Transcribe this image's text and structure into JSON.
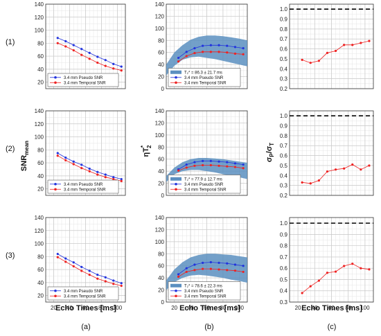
{
  "row_labels": [
    "(1)",
    "(2)",
    "(3)"
  ],
  "col_labels": [
    "(a)",
    "(b)",
    "(c)"
  ],
  "ylabels": {
    "a_base": "SNR",
    "a_sub": "mean",
    "b_base": "ηT",
    "b_sup": "*",
    "b_sub": "2",
    "c_base": "σ",
    "c_sub1": "P",
    "c_mid": "/σ",
    "c_sub2": "T"
  },
  "xlabel": "Echo Times [ms]",
  "colors": {
    "pseudo": "#2233dd",
    "temporal": "#ee2222",
    "band": "#5b8fc0",
    "grid": "#c8c8c8",
    "dashed": "#000000"
  },
  "chart_data": [
    {
      "row": "(1)",
      "col": "(a)",
      "type": "line",
      "xlim": [
        10,
        110
      ],
      "ylim": [
        10,
        140
      ],
      "xticks": [
        20,
        40,
        60,
        80,
        100
      ],
      "yticks": [
        20,
        40,
        60,
        80,
        100,
        120,
        140
      ],
      "x": [
        25,
        35,
        45,
        55,
        65,
        75,
        85,
        95,
        105
      ],
      "series": [
        {
          "name": "3.4 mm Pseudo SNR",
          "values": [
            88,
            83,
            77,
            71,
            65,
            59,
            54,
            48,
            44
          ]
        },
        {
          "name": "3.4 mm Temporal SNR",
          "values": [
            80,
            75,
            69,
            62,
            56,
            50,
            45,
            41,
            38
          ]
        }
      ]
    },
    {
      "row": "(1)",
      "col": "(b)",
      "type": "line",
      "xlim": [
        10,
        110
      ],
      "ylim": [
        0,
        140
      ],
      "xticks": [
        20,
        40,
        60,
        80,
        100
      ],
      "yticks": [
        0,
        20,
        40,
        60,
        80,
        100,
        120,
        140
      ],
      "band_label": "T₂* = 86.3 ± 21.7 ms",
      "band_x": [
        10,
        20,
        30,
        40,
        50,
        60,
        70,
        80,
        90,
        100,
        110
      ],
      "band_upper": [
        40,
        60,
        72,
        81,
        86,
        88,
        88,
        87,
        85,
        83,
        80
      ],
      "band_lower": [
        22,
        38,
        48,
        52,
        53,
        51,
        49,
        46,
        43,
        40,
        37
      ],
      "x": [
        25,
        35,
        45,
        55,
        65,
        75,
        85,
        95,
        105
      ],
      "series": [
        {
          "name": "3.4 mm Pseudo SNR",
          "values": [
            51,
            61,
            67,
            71,
            72,
            72,
            71,
            69,
            67
          ]
        },
        {
          "name": "3.4 mm Temporal SNR",
          "values": [
            45,
            54,
            59,
            61,
            61,
            61,
            60,
            58,
            57
          ]
        }
      ]
    },
    {
      "row": "(1)",
      "col": "(c)",
      "type": "line",
      "xlim": [
        10,
        110
      ],
      "ylim": [
        0.2,
        1.05
      ],
      "xticks": [
        20,
        40,
        60,
        80,
        100
      ],
      "yticks": [
        0.2,
        0.3,
        0.4,
        0.5,
        0.6,
        0.7,
        0.8,
        0.9,
        1.0
      ],
      "ytick_labels": [
        "0.2",
        "0.3",
        "0.4",
        "0.5",
        "0.6",
        "0.7",
        "0.8",
        "0.9",
        "1.0"
      ],
      "hline": 1.0,
      "x": [
        25,
        35,
        45,
        55,
        65,
        75,
        85,
        95,
        105
      ],
      "series": [
        {
          "name": "",
          "values": [
            0.49,
            0.46,
            0.48,
            0.56,
            0.58,
            0.64,
            0.64,
            0.66,
            0.68
          ]
        }
      ]
    },
    {
      "row": "(2)",
      "col": "(a)",
      "type": "line",
      "xlim": [
        10,
        110
      ],
      "ylim": [
        10,
        140
      ],
      "xticks": [
        20,
        40,
        60,
        80,
        100
      ],
      "yticks": [
        20,
        40,
        60,
        80,
        100,
        120,
        140
      ],
      "x": [
        25,
        35,
        45,
        55,
        65,
        75,
        85,
        95,
        105
      ],
      "series": [
        {
          "name": "3.4 mm Pseudo SNR",
          "values": [
            75,
            68,
            62,
            57,
            51,
            46,
            42,
            38,
            35
          ]
        },
        {
          "name": "3.4 mm Temporal SNR",
          "values": [
            71,
            64,
            58,
            52,
            47,
            42,
            38,
            35,
            32
          ]
        }
      ]
    },
    {
      "row": "(2)",
      "col": "(b)",
      "type": "line",
      "xlim": [
        10,
        110
      ],
      "ylim": [
        0,
        140
      ],
      "xticks": [
        20,
        40,
        60,
        80,
        100
      ],
      "yticks": [
        0,
        20,
        40,
        60,
        80,
        100,
        120,
        140
      ],
      "band_label": "T₂* = 77.9 ± 12.7 ms",
      "band_x": [
        10,
        20,
        30,
        40,
        50,
        60,
        70,
        80,
        90,
        100,
        110
      ],
      "band_upper": [
        32,
        46,
        55,
        60,
        62,
        62,
        61,
        60,
        58,
        56,
        54
      ],
      "band_lower": [
        22,
        35,
        40,
        42,
        42,
        40,
        38,
        35,
        32,
        30,
        27
      ],
      "x": [
        25,
        35,
        45,
        55,
        65,
        75,
        85,
        95,
        105
      ],
      "series": [
        {
          "name": "3.4 mm Pseudo SNR",
          "values": [
            43,
            51,
            55,
            57,
            57,
            56,
            55,
            53,
            51
          ]
        },
        {
          "name": "3.4 mm Temporal SNR",
          "values": [
            41,
            46,
            49,
            50,
            50,
            49,
            48,
            47,
            45
          ]
        }
      ]
    },
    {
      "row": "(2)",
      "col": "(c)",
      "type": "line",
      "xlim": [
        10,
        110
      ],
      "ylim": [
        0.2,
        1.05
      ],
      "xticks": [
        20,
        40,
        60,
        80,
        100
      ],
      "yticks": [
        0.2,
        0.3,
        0.4,
        0.5,
        0.6,
        0.7,
        0.8,
        0.9,
        1.0
      ],
      "ytick_labels": [
        "0.2",
        "0.3",
        "0.4",
        "0.5",
        "0.6",
        "0.7",
        "0.8",
        "0.9",
        "1.0"
      ],
      "hline": 1.0,
      "x": [
        25,
        35,
        45,
        55,
        65,
        75,
        85,
        95,
        105
      ],
      "series": [
        {
          "name": "",
          "values": [
            0.33,
            0.32,
            0.35,
            0.44,
            0.46,
            0.47,
            0.51,
            0.46,
            0.5
          ]
        }
      ]
    },
    {
      "row": "(3)",
      "col": "(a)",
      "type": "line",
      "xlim": [
        10,
        110
      ],
      "ylim": [
        10,
        140
      ],
      "xticks": [
        20,
        40,
        60,
        80,
        100
      ],
      "yticks": [
        20,
        40,
        60,
        80,
        100,
        120,
        140
      ],
      "x": [
        25,
        35,
        45,
        55,
        65,
        75,
        85,
        95,
        105
      ],
      "series": [
        {
          "name": "3.4 mm Pseudo SNR",
          "values": [
            84,
            77,
            71,
            64,
            58,
            52,
            48,
            43,
            39
          ]
        },
        {
          "name": "3.4 mm Temporal SNR",
          "values": [
            79,
            72,
            65,
            58,
            52,
            46,
            42,
            38,
            35
          ]
        }
      ]
    },
    {
      "row": "(3)",
      "col": "(b)",
      "type": "line",
      "xlim": [
        10,
        110
      ],
      "ylim": [
        0,
        140
      ],
      "xticks": [
        20,
        40,
        60,
        80,
        100
      ],
      "yticks": [
        0,
        20,
        40,
        60,
        80,
        100,
        120,
        140
      ],
      "band_label": "T₂* = 78.6 ± 22.3 ms",
      "band_x": [
        10,
        20,
        30,
        40,
        50,
        60,
        70,
        80,
        90,
        100,
        110
      ],
      "band_upper": [
        36,
        54,
        66,
        74,
        78,
        80,
        80,
        79,
        78,
        76,
        74
      ],
      "band_lower": [
        20,
        33,
        40,
        44,
        45,
        44,
        42,
        40,
        37,
        35,
        32
      ],
      "x": [
        25,
        35,
        45,
        55,
        65,
        75,
        85,
        95,
        105
      ],
      "series": [
        {
          "name": "3.4 mm Pseudo SNR",
          "values": [
            46,
            56,
            62,
            65,
            66,
            65,
            64,
            62,
            60
          ]
        },
        {
          "name": "3.4 mm Temporal SNR",
          "values": [
            42,
            50,
            53,
            55,
            55,
            54,
            53,
            52,
            50
          ]
        }
      ]
    },
    {
      "row": "(3)",
      "col": "(c)",
      "type": "line",
      "xlim": [
        10,
        110
      ],
      "ylim": [
        0.3,
        1.05
      ],
      "xticks": [
        20,
        40,
        60,
        80,
        100
      ],
      "yticks": [
        0.3,
        0.4,
        0.5,
        0.6,
        0.7,
        0.8,
        0.9,
        1.0
      ],
      "ytick_labels": [
        "0.3",
        "0.4",
        "0.5",
        "0.6",
        "0.7",
        "0.8",
        "0.9",
        "1.0"
      ],
      "hline": 1.0,
      "x": [
        25,
        35,
        45,
        55,
        65,
        75,
        85,
        95,
        105
      ],
      "series": [
        {
          "name": "",
          "values": [
            0.38,
            0.44,
            0.49,
            0.56,
            0.57,
            0.62,
            0.64,
            0.6,
            0.59
          ]
        }
      ]
    }
  ]
}
